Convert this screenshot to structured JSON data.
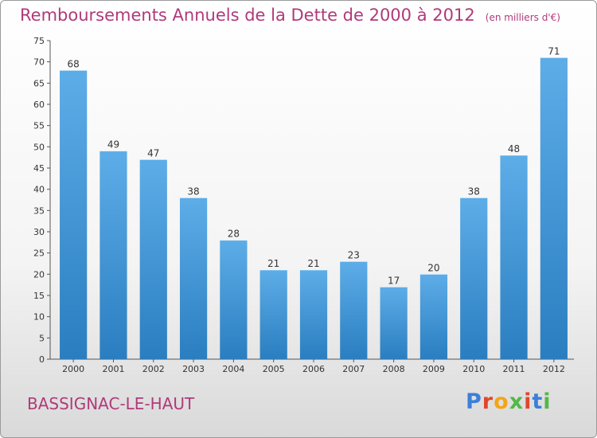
{
  "header": {
    "title": "Remboursements Annuels de la Dette de 2000 à 2012",
    "subtitle": "(en milliers d'€)"
  },
  "footer": {
    "commune": "BASSIGNAC-LE-HAUT",
    "logo_letters": [
      "P",
      "r",
      "o",
      "x",
      "i",
      "t",
      "i"
    ]
  },
  "colors": {
    "title": "#b03a7a",
    "bar_light": "#5dade8",
    "bar_dark": "#2a7ec0",
    "logo": [
      "#3b7fd9",
      "#e0462c",
      "#f2a516",
      "#53b848",
      "#e0462c",
      "#3b7fd9",
      "#53b848"
    ]
  },
  "chart_data": {
    "type": "bar",
    "title": "Remboursements Annuels de la Dette de 2000 à 2012",
    "subtitle": "(en milliers d'€)",
    "categories": [
      "2000",
      "2001",
      "2002",
      "2003",
      "2004",
      "2005",
      "2006",
      "2007",
      "2008",
      "2009",
      "2010",
      "2011",
      "2012"
    ],
    "values": [
      68,
      49,
      47,
      38,
      28,
      21,
      21,
      23,
      17,
      20,
      38,
      48,
      71
    ],
    "ylim": [
      0,
      75
    ],
    "yticks": [
      0,
      5,
      10,
      15,
      20,
      25,
      30,
      35,
      40,
      45,
      50,
      55,
      60,
      65,
      70,
      75
    ],
    "grid": false,
    "legend": "none"
  }
}
